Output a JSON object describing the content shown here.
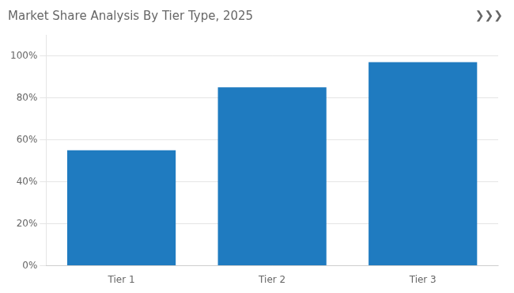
{
  "chart_data": {
    "type": "bar",
    "title": "Market Share Analysis By Tier Type, 2025",
    "annotations": [
      "❯❯❯"
    ],
    "categories": [
      "Tier 1",
      "Tier 2",
      "Tier 3"
    ],
    "values": [
      55,
      85,
      97
    ],
    "color": "#1F7BC0",
    "ylim": [
      0,
      110
    ],
    "yticks": [
      {
        "value": 0,
        "label": "0%"
      },
      {
        "value": 20,
        "label": "20%"
      },
      {
        "value": 40,
        "label": "40%"
      },
      {
        "value": 60,
        "label": "60%"
      },
      {
        "value": 80,
        "label": "80%"
      },
      {
        "value": 100,
        "label": "100%"
      }
    ],
    "grid": true
  }
}
